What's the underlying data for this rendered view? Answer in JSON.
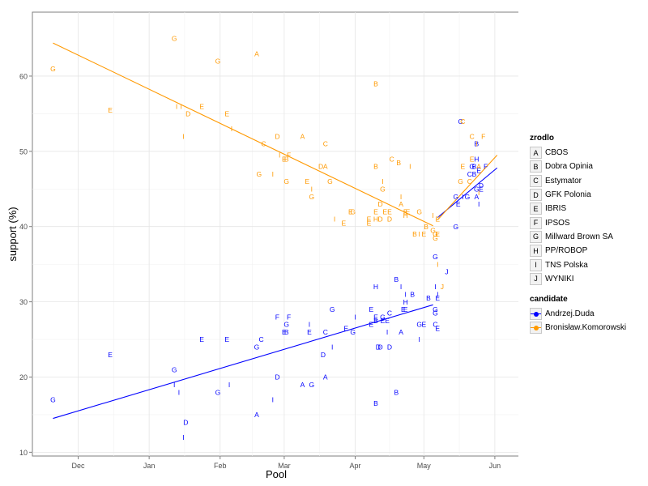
{
  "chart_data": {
    "type": "scatter",
    "title": "",
    "xlabel": "Pool",
    "ylabel": "support (%)",
    "x_ticks": [
      {
        "label": "Dec",
        "day": 13
      },
      {
        "label": "Jan",
        "day": 44
      },
      {
        "label": "Feb",
        "day": 75
      },
      {
        "label": "Mar",
        "day": 103
      },
      {
        "label": "Apr",
        "day": 134
      },
      {
        "label": "May",
        "day": 164
      },
      {
        "label": "Jun",
        "day": 195
      }
    ],
    "x_range_days": [
      -7,
      206
    ],
    "y_range": [
      9.5,
      68.5
    ],
    "y_ticks": [
      10,
      20,
      30,
      40,
      50,
      60
    ],
    "grid": true,
    "x_axis_note": "day 0 = 2014-11-18",
    "legend": {
      "source_title": "zrodlo",
      "sources": [
        {
          "code": "A",
          "name": "CBOS"
        },
        {
          "code": "B",
          "name": "Dobra Opinia"
        },
        {
          "code": "C",
          "name": "Estymator"
        },
        {
          "code": "D",
          "name": "GFK Polonia"
        },
        {
          "code": "E",
          "name": "IBRIS"
        },
        {
          "code": "F",
          "name": "IPSOS"
        },
        {
          "code": "G",
          "name": "Millward Brown SA"
        },
        {
          "code": "H",
          "name": "PP/ROBOP"
        },
        {
          "code": "I",
          "name": "TNS Polska"
        },
        {
          "code": "J",
          "name": "WYNIKI"
        }
      ],
      "candidate_title": "candidate",
      "candidates": [
        {
          "name": "Andrzej.Duda",
          "color": "#0000ff"
        },
        {
          "name": "Bronisław.Komorowski",
          "color": "#ff9900"
        }
      ]
    },
    "series": [
      {
        "name": "Andrzej.Duda",
        "color": "#0000ff",
        "trend_lines": [
          {
            "x": [
              2,
              168
            ],
            "y": [
              14.5,
              29.6
            ]
          },
          {
            "x": [
              170,
              196
            ],
            "y": [
              41.2,
              47.8
            ]
          }
        ],
        "points": [
          {
            "x": 2,
            "y": 17,
            "label": "G"
          },
          {
            "x": 27,
            "y": 23,
            "label": "E"
          },
          {
            "x": 55,
            "y": 21,
            "label": "G"
          },
          {
            "x": 55,
            "y": 19,
            "label": "I"
          },
          {
            "x": 57,
            "y": 18,
            "label": "I"
          },
          {
            "x": 60,
            "y": 14,
            "label": "D"
          },
          {
            "x": 59,
            "y": 12,
            "label": "I"
          },
          {
            "x": 67,
            "y": 25,
            "label": "E"
          },
          {
            "x": 74,
            "y": 18,
            "label": "G"
          },
          {
            "x": 79,
            "y": 19,
            "label": "I"
          },
          {
            "x": 78,
            "y": 25,
            "label": "E"
          },
          {
            "x": 91,
            "y": 24,
            "label": "G"
          },
          {
            "x": 91,
            "y": 15,
            "label": "A"
          },
          {
            "x": 93,
            "y": 25,
            "label": "C"
          },
          {
            "x": 98,
            "y": 17,
            "label": "I"
          },
          {
            "x": 100,
            "y": 20,
            "label": "D"
          },
          {
            "x": 100,
            "y": 28,
            "label": "F"
          },
          {
            "x": 103,
            "y": 26,
            "label": "E"
          },
          {
            "x": 104,
            "y": 27,
            "label": "G"
          },
          {
            "x": 104,
            "y": 26,
            "label": "B"
          },
          {
            "x": 105,
            "y": 28,
            "label": "F"
          },
          {
            "x": 111,
            "y": 19,
            "label": "A"
          },
          {
            "x": 115,
            "y": 19,
            "label": "G"
          },
          {
            "x": 114,
            "y": 26,
            "label": "E"
          },
          {
            "x": 114,
            "y": 27,
            "label": "I"
          },
          {
            "x": 120,
            "y": 23,
            "label": "D"
          },
          {
            "x": 121,
            "y": 20,
            "label": "A"
          },
          {
            "x": 121,
            "y": 26,
            "label": "C"
          },
          {
            "x": 124,
            "y": 29,
            "label": "G"
          },
          {
            "x": 124,
            "y": 24,
            "label": "I"
          },
          {
            "x": 130,
            "y": 26.5,
            "label": "E"
          },
          {
            "x": 133,
            "y": 26,
            "label": "G"
          },
          {
            "x": 134,
            "y": 28,
            "label": "I"
          },
          {
            "x": 141,
            "y": 29,
            "label": "E"
          },
          {
            "x": 141,
            "y": 27,
            "label": "E"
          },
          {
            "x": 143,
            "y": 27.5,
            "label": "B"
          },
          {
            "x": 143,
            "y": 32,
            "label": "H"
          },
          {
            "x": 143,
            "y": 28,
            "label": "E"
          },
          {
            "x": 143,
            "y": 16.5,
            "label": "B"
          },
          {
            "x": 144,
            "y": 24,
            "label": "D"
          },
          {
            "x": 145,
            "y": 24,
            "label": "D"
          },
          {
            "x": 146,
            "y": 28,
            "label": "G"
          },
          {
            "x": 146,
            "y": 27.5,
            "label": "E"
          },
          {
            "x": 148,
            "y": 27.5,
            "label": "E"
          },
          {
            "x": 148,
            "y": 26,
            "label": "I"
          },
          {
            "x": 149,
            "y": 24,
            "label": "D"
          },
          {
            "x": 149,
            "y": 28.5,
            "label": "C"
          },
          {
            "x": 152,
            "y": 33,
            "label": "B"
          },
          {
            "x": 152,
            "y": 18,
            "label": "B"
          },
          {
            "x": 154,
            "y": 26,
            "label": "A"
          },
          {
            "x": 154,
            "y": 32,
            "label": "I"
          },
          {
            "x": 155,
            "y": 29,
            "label": "E"
          },
          {
            "x": 156,
            "y": 29,
            "label": "E"
          },
          {
            "x": 156,
            "y": 30,
            "label": "H"
          },
          {
            "x": 156,
            "y": 31,
            "label": "I"
          },
          {
            "x": 159,
            "y": 31,
            "label": "B"
          },
          {
            "x": 162,
            "y": 27,
            "label": "G"
          },
          {
            "x": 162,
            "y": 25,
            "label": "I"
          },
          {
            "x": 164,
            "y": 27,
            "label": "E"
          },
          {
            "x": 166,
            "y": 30.5,
            "label": "B"
          },
          {
            "x": 169,
            "y": 36,
            "label": "G"
          },
          {
            "x": 169,
            "y": 32,
            "label": "I"
          },
          {
            "x": 169,
            "y": 29,
            "label": "G"
          },
          {
            "x": 169,
            "y": 28.5,
            "label": "G"
          },
          {
            "x": 169,
            "y": 27,
            "label": "C"
          },
          {
            "x": 170,
            "y": 26.5,
            "label": "E"
          },
          {
            "x": 170,
            "y": 30.5,
            "label": "E"
          },
          {
            "x": 170,
            "y": 31,
            "label": "I"
          },
          {
            "x": 174,
            "y": 34,
            "label": "J"
          },
          {
            "x": 178,
            "y": 40,
            "label": "G"
          },
          {
            "x": 178,
            "y": 44,
            "label": "G"
          },
          {
            "x": 179,
            "y": 43,
            "label": "E"
          },
          {
            "x": 180,
            "y": 54,
            "label": "C"
          },
          {
            "x": 181,
            "y": 44,
            "label": "I"
          },
          {
            "x": 183,
            "y": 44,
            "label": "G"
          },
          {
            "x": 184,
            "y": 47,
            "label": "C"
          },
          {
            "x": 185,
            "y": 48,
            "label": "G"
          },
          {
            "x": 186,
            "y": 47,
            "label": "B"
          },
          {
            "x": 186,
            "y": 48,
            "label": "B"
          },
          {
            "x": 187,
            "y": 49,
            "label": "H"
          },
          {
            "x": 187,
            "y": 44,
            "label": "A"
          },
          {
            "x": 187,
            "y": 45,
            "label": "G"
          },
          {
            "x": 188,
            "y": 47.5,
            "label": "E"
          },
          {
            "x": 188,
            "y": 43,
            "label": "I"
          },
          {
            "x": 189,
            "y": 45.5,
            "label": "D"
          },
          {
            "x": 189,
            "y": 45,
            "label": "E"
          },
          {
            "x": 191,
            "y": 48,
            "label": "F"
          },
          {
            "x": 187,
            "y": 51,
            "label": "B"
          }
        ]
      },
      {
        "name": "Bronisław.Komorowski",
        "color": "#ff9900",
        "trend_lines": [
          {
            "x": [
              2,
              168
            ],
            "y": [
              64.4,
              40.1
            ]
          },
          {
            "x": [
              170,
              196
            ],
            "y": [
              40.9,
              49.5
            ]
          }
        ],
        "points": [
          {
            "x": 2,
            "y": 61,
            "label": "G"
          },
          {
            "x": 27,
            "y": 55.5,
            "label": "E"
          },
          {
            "x": 55,
            "y": 65,
            "label": "G"
          },
          {
            "x": 56,
            "y": 56,
            "label": "I"
          },
          {
            "x": 58,
            "y": 56,
            "label": "I"
          },
          {
            "x": 61,
            "y": 55,
            "label": "D"
          },
          {
            "x": 59,
            "y": 52,
            "label": "I"
          },
          {
            "x": 67,
            "y": 56,
            "label": "E"
          },
          {
            "x": 74,
            "y": 62,
            "label": "G"
          },
          {
            "x": 78,
            "y": 55,
            "label": "E"
          },
          {
            "x": 80,
            "y": 53,
            "label": "I"
          },
          {
            "x": 91,
            "y": 63,
            "label": "A"
          },
          {
            "x": 92,
            "y": 47,
            "label": "G"
          },
          {
            "x": 94,
            "y": 51,
            "label": "C"
          },
          {
            "x": 98,
            "y": 47,
            "label": "I"
          },
          {
            "x": 100,
            "y": 52,
            "label": "D"
          },
          {
            "x": 101,
            "y": 49.5,
            "label": "I"
          },
          {
            "x": 103,
            "y": 49,
            "label": "E"
          },
          {
            "x": 104,
            "y": 49,
            "label": "B"
          },
          {
            "x": 105,
            "y": 49.5,
            "label": "F"
          },
          {
            "x": 104,
            "y": 46,
            "label": "G"
          },
          {
            "x": 111,
            "y": 52,
            "label": "A"
          },
          {
            "x": 113,
            "y": 46,
            "label": "E"
          },
          {
            "x": 115,
            "y": 45,
            "label": "I"
          },
          {
            "x": 115,
            "y": 44,
            "label": "G"
          },
          {
            "x": 119,
            "y": 48,
            "label": "D"
          },
          {
            "x": 121,
            "y": 48,
            "label": "A"
          },
          {
            "x": 121,
            "y": 51,
            "label": "C"
          },
          {
            "x": 123,
            "y": 46,
            "label": "G"
          },
          {
            "x": 125,
            "y": 41,
            "label": "I"
          },
          {
            "x": 129,
            "y": 40.5,
            "label": "E"
          },
          {
            "x": 132,
            "y": 42,
            "label": "E"
          },
          {
            "x": 133,
            "y": 42,
            "label": "G"
          },
          {
            "x": 140,
            "y": 41,
            "label": "E"
          },
          {
            "x": 140,
            "y": 40.5,
            "label": "E"
          },
          {
            "x": 143,
            "y": 41,
            "label": "H"
          },
          {
            "x": 143,
            "y": 42,
            "label": "E"
          },
          {
            "x": 143,
            "y": 48,
            "label": "B"
          },
          {
            "x": 143,
            "y": 59,
            "label": "B"
          },
          {
            "x": 145,
            "y": 41,
            "label": "D"
          },
          {
            "x": 145,
            "y": 43,
            "label": "D"
          },
          {
            "x": 146,
            "y": 46,
            "label": "I"
          },
          {
            "x": 146,
            "y": 45,
            "label": "G"
          },
          {
            "x": 147,
            "y": 42,
            "label": "E"
          },
          {
            "x": 149,
            "y": 42,
            "label": "E"
          },
          {
            "x": 149,
            "y": 41,
            "label": "D"
          },
          {
            "x": 150,
            "y": 49,
            "label": "C"
          },
          {
            "x": 153,
            "y": 48.5,
            "label": "B"
          },
          {
            "x": 154,
            "y": 44,
            "label": "I"
          },
          {
            "x": 154,
            "y": 43,
            "label": "A"
          },
          {
            "x": 156,
            "y": 42,
            "label": "E"
          },
          {
            "x": 156,
            "y": 41.5,
            "label": "H"
          },
          {
            "x": 157,
            "y": 42,
            "label": "E"
          },
          {
            "x": 158,
            "y": 48,
            "label": "I"
          },
          {
            "x": 160,
            "y": 39,
            "label": "B"
          },
          {
            "x": 162,
            "y": 42,
            "label": "G"
          },
          {
            "x": 162,
            "y": 39,
            "label": "I"
          },
          {
            "x": 164,
            "y": 39,
            "label": "E"
          },
          {
            "x": 165,
            "y": 40,
            "label": "B"
          },
          {
            "x": 168,
            "y": 41.5,
            "label": "I"
          },
          {
            "x": 168,
            "y": 39.5,
            "label": "G"
          },
          {
            "x": 169,
            "y": 39,
            "label": "G"
          },
          {
            "x": 169,
            "y": 38.5,
            "label": "G"
          },
          {
            "x": 170,
            "y": 41,
            "label": "E"
          },
          {
            "x": 170,
            "y": 39,
            "label": "E"
          },
          {
            "x": 170,
            "y": 35,
            "label": "I"
          },
          {
            "x": 172,
            "y": 32,
            "label": "J"
          },
          {
            "x": 181,
            "y": 54,
            "label": "C"
          },
          {
            "x": 180,
            "y": 46,
            "label": "G"
          },
          {
            "x": 181,
            "y": 48,
            "label": "E"
          },
          {
            "x": 184,
            "y": 46,
            "label": "C"
          },
          {
            "x": 185,
            "y": 52,
            "label": "C"
          },
          {
            "x": 185,
            "y": 49,
            "label": "E"
          },
          {
            "x": 187,
            "y": 51,
            "label": "I"
          },
          {
            "x": 188,
            "y": 44.5,
            "label": "I"
          },
          {
            "x": 188,
            "y": 48,
            "label": "A"
          },
          {
            "x": 190,
            "y": 52,
            "label": "F"
          }
        ]
      }
    ]
  }
}
